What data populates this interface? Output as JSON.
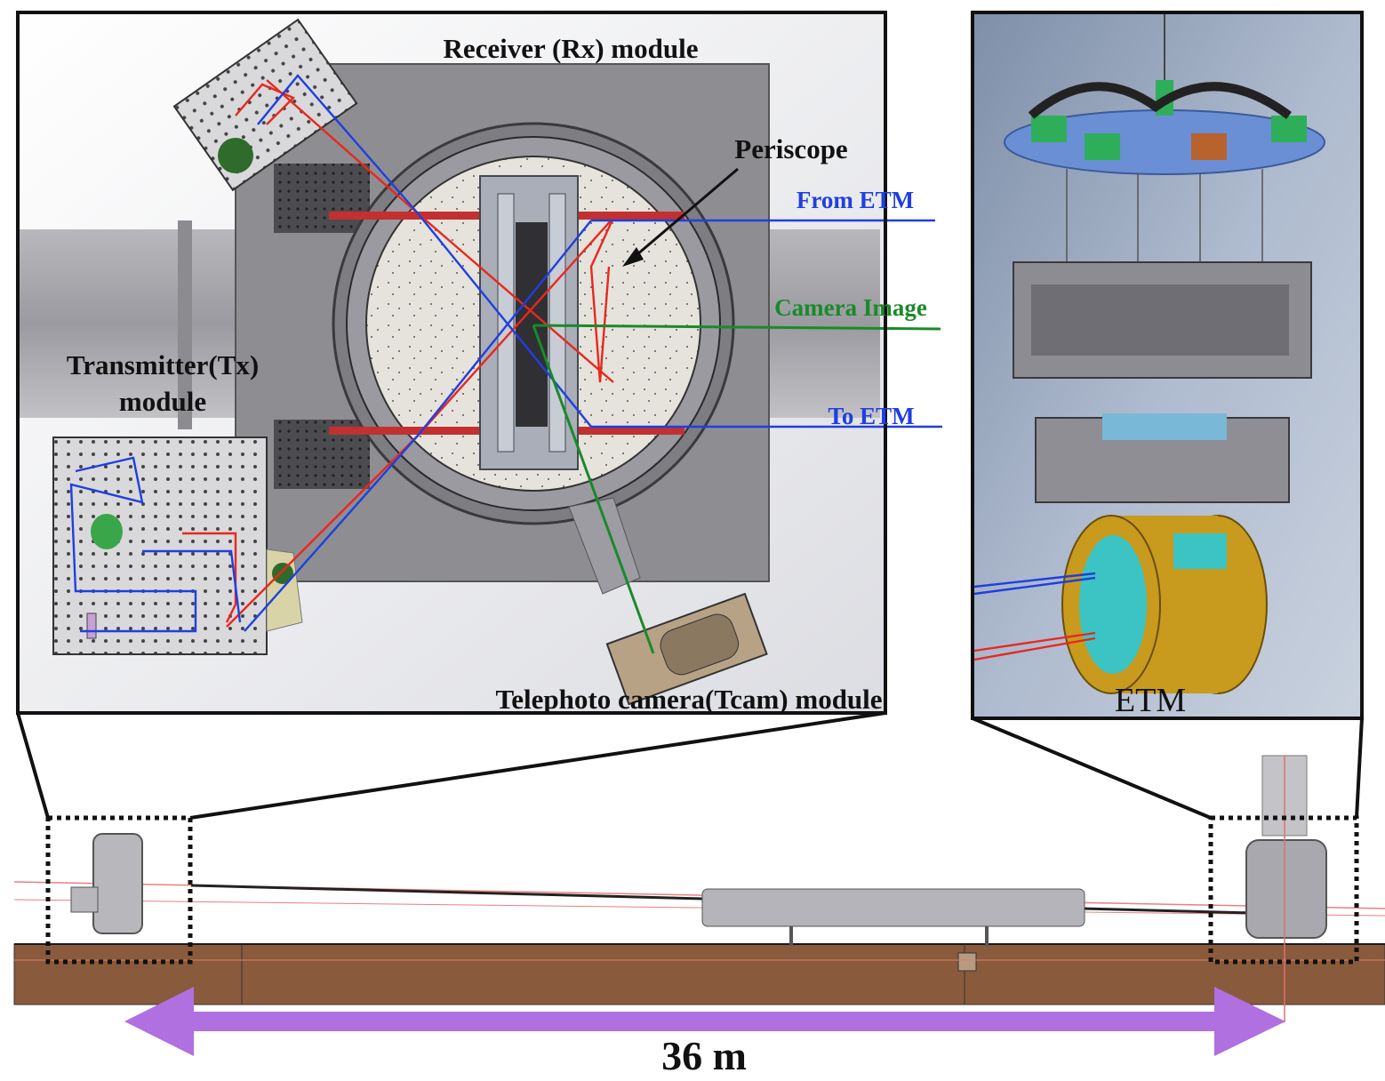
{
  "labels": {
    "rx_module": "Receiver (Rx) module",
    "periscope": "Periscope",
    "from_etm": "From ETM",
    "camera_image": "Camera Image",
    "to_etm": "To ETM",
    "tx_module_line1": "Transmitter(Tx)",
    "tx_module_line2": "module",
    "tcam_module": "Telephoto camera(Tcam) module",
    "etm": "ETM",
    "distance": "36 m"
  },
  "colors": {
    "beam_red": "#e8281e",
    "beam_blue": "#1f3fe0",
    "beam_green": "#1a8a2a",
    "label_blue": "#1f3fe0",
    "label_green": "#1a8a2a",
    "arrow_purple": "#b070e0",
    "floor_brown": "#8a5a3c",
    "teal": "#3cc4c4",
    "gold": "#c89a1e"
  }
}
